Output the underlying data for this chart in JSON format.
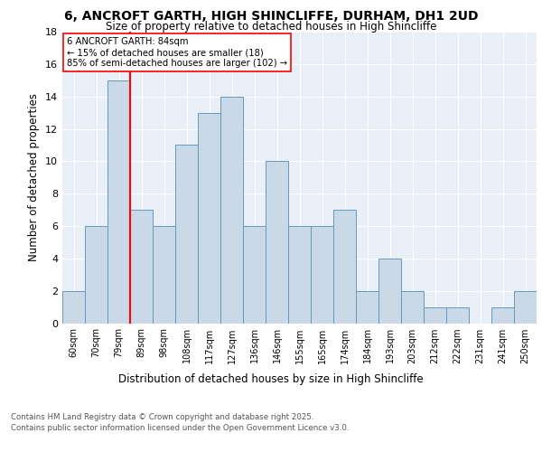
{
  "title_line1": "6, ANCROFT GARTH, HIGH SHINCLIFFE, DURHAM, DH1 2UD",
  "title_line2": "Size of property relative to detached houses in High Shincliffe",
  "xlabel": "Distribution of detached houses by size in High Shincliffe",
  "ylabel": "Number of detached properties",
  "categories": [
    "60sqm",
    "70sqm",
    "79sqm",
    "89sqm",
    "98sqm",
    "108sqm",
    "117sqm",
    "127sqm",
    "136sqm",
    "146sqm",
    "155sqm",
    "165sqm",
    "174sqm",
    "184sqm",
    "193sqm",
    "203sqm",
    "212sqm",
    "222sqm",
    "231sqm",
    "241sqm",
    "250sqm"
  ],
  "values": [
    2,
    6,
    15,
    7,
    6,
    11,
    13,
    14,
    6,
    10,
    6,
    6,
    7,
    2,
    4,
    2,
    1,
    1,
    0,
    1,
    2
  ],
  "bar_color": "#c9d9e8",
  "bar_edge_color": "#6699bb",
  "red_line_index": 2,
  "annotation_text": "6 ANCROFT GARTH: 84sqm\n← 15% of detached houses are smaller (18)\n85% of semi-detached houses are larger (102) →",
  "ylim": [
    0,
    18
  ],
  "yticks": [
    0,
    2,
    4,
    6,
    8,
    10,
    12,
    14,
    16,
    18
  ],
  "background_color": "#e8eff7",
  "footer_line1": "Contains HM Land Registry data © Crown copyright and database right 2025.",
  "footer_line2": "Contains public sector information licensed under the Open Government Licence v3.0."
}
